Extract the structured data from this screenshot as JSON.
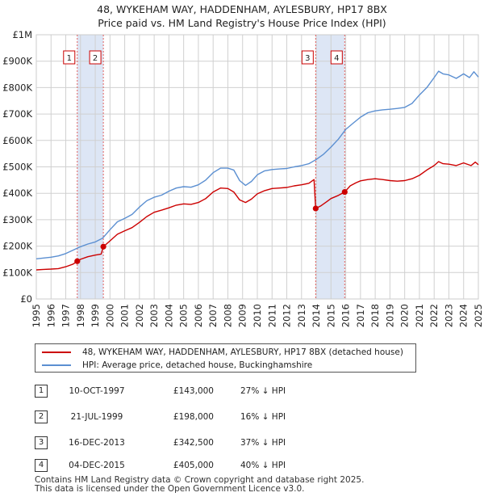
{
  "title": {
    "line1": "48, WYKEHAM WAY, HADDENHAM, AYLESBURY, HP17 8BX",
    "line2": "Price paid vs. HM Land Registry's House Price Index (HPI)"
  },
  "colors": {
    "property": "#cc0000",
    "hpi": "#5b8fd1",
    "band": "#dde6f5",
    "grid": "#d0d0d0",
    "marker_line": "#e06060"
  },
  "chart_data": {
    "type": "line",
    "title": "48, WYKEHAM WAY, HADDENHAM, AYLESBURY, HP17 8BX - Price paid vs. HM Land Registry's House Price Index (HPI)",
    "xlabel": "",
    "ylabel": "",
    "xlim": [
      1995,
      2025
    ],
    "ylim": [
      0,
      1000000
    ],
    "grid": true,
    "x_ticks": [
      "1995",
      "1996",
      "1997",
      "1998",
      "1999",
      "2000",
      "2001",
      "2002",
      "2003",
      "2004",
      "2005",
      "2006",
      "2007",
      "2008",
      "2009",
      "2010",
      "2011",
      "2012",
      "2013",
      "2014",
      "2015",
      "2016",
      "2017",
      "2018",
      "2019",
      "2020",
      "2021",
      "2022",
      "2023",
      "2024",
      "2025"
    ],
    "y_ticks": [
      {
        "value": 0,
        "label": "£0"
      },
      {
        "value": 100000,
        "label": "£100K"
      },
      {
        "value": 200000,
        "label": "£200K"
      },
      {
        "value": 300000,
        "label": "£300K"
      },
      {
        "value": 400000,
        "label": "£400K"
      },
      {
        "value": 500000,
        "label": "£500K"
      },
      {
        "value": 600000,
        "label": "£600K"
      },
      {
        "value": 700000,
        "label": "£700K"
      },
      {
        "value": 800000,
        "label": "£800K"
      },
      {
        "value": 900000,
        "label": "£900K"
      },
      {
        "value": 1000000,
        "label": "£1M"
      }
    ],
    "highlight_bands": [
      [
        1997.78,
        1999.55
      ],
      [
        2013.96,
        2015.93
      ]
    ],
    "series": [
      {
        "name": "48, WYKEHAM WAY, HADDENHAM, AYLESBURY, HP17 8BX (detached house)",
        "key": "property",
        "points": [
          [
            1995.0,
            110000
          ],
          [
            1995.5,
            112000
          ],
          [
            1996.0,
            113000
          ],
          [
            1996.5,
            115000
          ],
          [
            1997.0,
            122000
          ],
          [
            1997.5,
            132000
          ],
          [
            1997.78,
            143000
          ],
          [
            1998.0,
            150000
          ],
          [
            1998.5,
            160000
          ],
          [
            1999.0,
            166000
          ],
          [
            1999.4,
            170000
          ],
          [
            1999.55,
            198000
          ],
          [
            2000.0,
            220000
          ],
          [
            2000.5,
            245000
          ],
          [
            2001.0,
            258000
          ],
          [
            2001.5,
            270000
          ],
          [
            2002.0,
            290000
          ],
          [
            2002.5,
            312000
          ],
          [
            2003.0,
            328000
          ],
          [
            2003.5,
            336000
          ],
          [
            2004.0,
            345000
          ],
          [
            2004.5,
            355000
          ],
          [
            2005.0,
            360000
          ],
          [
            2005.5,
            358000
          ],
          [
            2006.0,
            365000
          ],
          [
            2006.5,
            380000
          ],
          [
            2007.0,
            405000
          ],
          [
            2007.5,
            420000
          ],
          [
            2008.0,
            418000
          ],
          [
            2008.4,
            405000
          ],
          [
            2008.8,
            375000
          ],
          [
            2009.2,
            365000
          ],
          [
            2009.6,
            378000
          ],
          [
            2010.0,
            398000
          ],
          [
            2010.5,
            410000
          ],
          [
            2011.0,
            418000
          ],
          [
            2011.5,
            420000
          ],
          [
            2012.0,
            422000
          ],
          [
            2012.5,
            428000
          ],
          [
            2013.0,
            432000
          ],
          [
            2013.5,
            438000
          ],
          [
            2013.85,
            452000
          ],
          [
            2013.96,
            342500
          ],
          [
            2014.3,
            352000
          ],
          [
            2014.7,
            368000
          ],
          [
            2015.0,
            380000
          ],
          [
            2015.5,
            392000
          ],
          [
            2015.93,
            405000
          ],
          [
            2016.3,
            428000
          ],
          [
            2016.7,
            440000
          ],
          [
            2017.0,
            447000
          ],
          [
            2017.5,
            452000
          ],
          [
            2018.0,
            455000
          ],
          [
            2018.5,
            452000
          ],
          [
            2019.0,
            448000
          ],
          [
            2019.5,
            446000
          ],
          [
            2020.0,
            448000
          ],
          [
            2020.5,
            455000
          ],
          [
            2021.0,
            468000
          ],
          [
            2021.5,
            488000
          ],
          [
            2022.0,
            505000
          ],
          [
            2022.3,
            520000
          ],
          [
            2022.6,
            512000
          ],
          [
            2023.0,
            510000
          ],
          [
            2023.5,
            505000
          ],
          [
            2024.0,
            515000
          ],
          [
            2024.5,
            505000
          ],
          [
            2024.8,
            518000
          ],
          [
            2025.0,
            508000
          ]
        ]
      },
      {
        "name": "HPI: Average price, detached house, Buckinghamshire",
        "key": "hpi",
        "points": [
          [
            1995.0,
            152000
          ],
          [
            1995.5,
            155000
          ],
          [
            1996.0,
            158000
          ],
          [
            1996.5,
            163000
          ],
          [
            1997.0,
            172000
          ],
          [
            1997.5,
            185000
          ],
          [
            1998.0,
            198000
          ],
          [
            1998.5,
            208000
          ],
          [
            1999.0,
            216000
          ],
          [
            1999.5,
            230000
          ],
          [
            2000.0,
            262000
          ],
          [
            2000.5,
            292000
          ],
          [
            2001.0,
            305000
          ],
          [
            2001.5,
            320000
          ],
          [
            2002.0,
            348000
          ],
          [
            2002.5,
            372000
          ],
          [
            2003.0,
            385000
          ],
          [
            2003.5,
            393000
          ],
          [
            2004.0,
            408000
          ],
          [
            2004.5,
            420000
          ],
          [
            2005.0,
            425000
          ],
          [
            2005.5,
            423000
          ],
          [
            2006.0,
            432000
          ],
          [
            2006.5,
            450000
          ],
          [
            2007.0,
            478000
          ],
          [
            2007.5,
            495000
          ],
          [
            2008.0,
            495000
          ],
          [
            2008.4,
            488000
          ],
          [
            2008.8,
            448000
          ],
          [
            2009.2,
            430000
          ],
          [
            2009.6,
            445000
          ],
          [
            2010.0,
            470000
          ],
          [
            2010.5,
            485000
          ],
          [
            2011.0,
            490000
          ],
          [
            2011.5,
            492000
          ],
          [
            2012.0,
            494000
          ],
          [
            2012.5,
            500000
          ],
          [
            2013.0,
            505000
          ],
          [
            2013.5,
            512000
          ],
          [
            2014.0,
            528000
          ],
          [
            2014.5,
            548000
          ],
          [
            2015.0,
            575000
          ],
          [
            2015.5,
            605000
          ],
          [
            2016.0,
            642000
          ],
          [
            2016.5,
            665000
          ],
          [
            2017.0,
            688000
          ],
          [
            2017.5,
            705000
          ],
          [
            2018.0,
            712000
          ],
          [
            2018.5,
            716000
          ],
          [
            2019.0,
            718000
          ],
          [
            2019.5,
            721000
          ],
          [
            2020.0,
            725000
          ],
          [
            2020.5,
            740000
          ],
          [
            2021.0,
            772000
          ],
          [
            2021.5,
            800000
          ],
          [
            2022.0,
            838000
          ],
          [
            2022.3,
            862000
          ],
          [
            2022.6,
            852000
          ],
          [
            2023.0,
            848000
          ],
          [
            2023.5,
            835000
          ],
          [
            2024.0,
            852000
          ],
          [
            2024.4,
            838000
          ],
          [
            2024.7,
            860000
          ],
          [
            2025.0,
            840000
          ]
        ]
      }
    ],
    "sales": [
      {
        "num": "1",
        "x": 1997.78,
        "price": 143000
      },
      {
        "num": "2",
        "x": 1999.55,
        "price": 198000
      },
      {
        "num": "3",
        "x": 2013.96,
        "price": 342500
      },
      {
        "num": "4",
        "x": 2015.93,
        "price": 405000
      }
    ]
  },
  "legend": {
    "property_label": "48, WYKEHAM WAY, HADDENHAM, AYLESBURY, HP17 8BX (detached house)",
    "hpi_label": "HPI: Average price, detached house, Buckinghamshire"
  },
  "sales_table": [
    {
      "num": "1",
      "date": "10-OCT-1997",
      "price": "£143,000",
      "hpi": "27% ↓ HPI"
    },
    {
      "num": "2",
      "date": "21-JUL-1999",
      "price": "£198,000",
      "hpi": "16% ↓ HPI"
    },
    {
      "num": "3",
      "date": "16-DEC-2013",
      "price": "£342,500",
      "hpi": "37% ↓ HPI"
    },
    {
      "num": "4",
      "date": "04-DEC-2015",
      "price": "£405,000",
      "hpi": "40% ↓ HPI"
    }
  ],
  "footer": {
    "line1": "Contains HM Land Registry data © Crown copyright and database right 2025.",
    "line2": "This data is licensed under the Open Government Licence v3.0."
  }
}
